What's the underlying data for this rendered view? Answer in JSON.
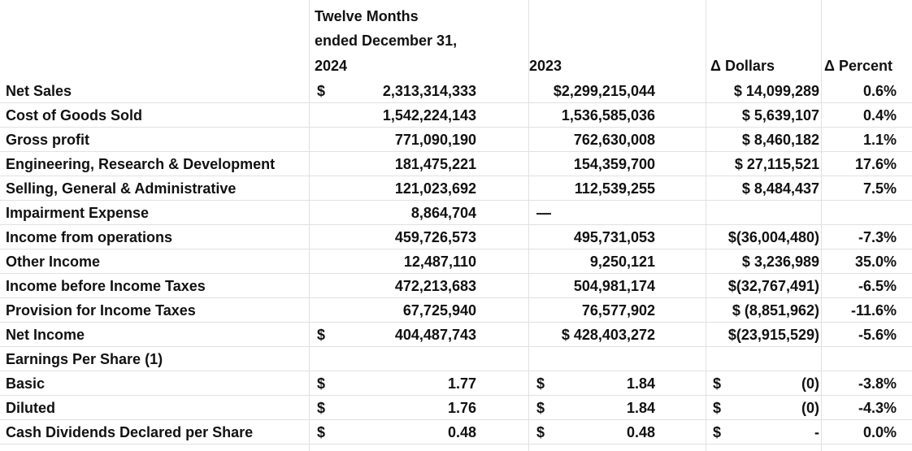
{
  "header": {
    "col1_line1": "Twelve Months",
    "col1_line2": "ended December 31,",
    "col1_line3": "2024",
    "col2": "2023",
    "col3": "Δ Dollars",
    "col4": "Δ Percent"
  },
  "rows": [
    {
      "label": "Net Sales",
      "d1": "$",
      "v1": "2,313,314,333",
      "d2": "",
      "v2": "$2,299,215,044",
      "delta": "$ 14,099,289",
      "pct": "0.6%"
    },
    {
      "label": "Cost of Goods Sold",
      "d1": "",
      "v1": "1,542,224,143",
      "d2": "",
      "v2": "1,536,585,036",
      "delta": "$  5,639,107",
      "pct": "0.4%"
    },
    {
      "label": "Gross profit",
      "d1": "",
      "v1": "771,090,190",
      "d2": "",
      "v2": "762,630,008",
      "delta": "$  8,460,182",
      "pct": "1.1%"
    },
    {
      "label": "Engineering, Research & Development",
      "d1": "",
      "v1": "181,475,221",
      "d2": "",
      "v2": "154,359,700",
      "delta": "$ 27,115,521",
      "pct": "17.6%"
    },
    {
      "label": "Selling, General & Administrative",
      "d1": "",
      "v1": "121,023,692",
      "d2": "",
      "v2": "112,539,255",
      "delta": "$  8,484,437",
      "pct": "7.5%"
    },
    {
      "label": "Impairment Expense",
      "d1": "",
      "v1": "8,864,704",
      "d2": "—",
      "v2": "",
      "delta": "",
      "pct": ""
    },
    {
      "label": "Income from operations",
      "d1": "",
      "v1": "459,726,573",
      "d2": "",
      "v2": "495,731,053",
      "delta": "$(36,004,480)",
      "pct": "-7.3%"
    },
    {
      "label": "Other Income",
      "d1": "",
      "v1": "12,487,110",
      "d2": "",
      "v2": "9,250,121",
      "delta": "$  3,236,989",
      "pct": "35.0%"
    },
    {
      "label": "Income before Income Taxes",
      "d1": "",
      "v1": "472,213,683",
      "d2": "",
      "v2": "504,981,174",
      "delta": "$(32,767,491)",
      "pct": "-6.5%"
    },
    {
      "label": "Provision for Income Taxes",
      "d1": "",
      "v1": "67,725,940",
      "d2": "",
      "v2": "76,577,902",
      "delta": "$  (8,851,962)",
      "pct": "-11.6%"
    },
    {
      "label": "Net Income",
      "d1": "$",
      "v1": "404,487,743",
      "d2": "",
      "v2": "$  428,403,272",
      "delta": "$(23,915,529)",
      "pct": "-5.6%"
    },
    {
      "label": "Earnings Per Share (1)",
      "d1": "",
      "v1": "",
      "d2": "",
      "v2": "",
      "delta": "",
      "pct": ""
    },
    {
      "label": "Basic",
      "d1": "$",
      "v1": "1.77",
      "d2": "$",
      "v2": "1.84",
      "d3": "$",
      "delta": "(0)",
      "pct": "-3.8%"
    },
    {
      "label": "Diluted",
      "d1": "$",
      "v1": "1.76",
      "d2": "$",
      "v2": "1.84",
      "d3": "$",
      "delta": "(0)",
      "pct": "-4.3%"
    },
    {
      "label": "Cash Dividends Declared per Share",
      "d1": "$",
      "v1": "0.48",
      "d2": "$",
      "v2": "0.48",
      "d3": "$",
      "delta": "-",
      "pct": "0.0%"
    }
  ]
}
